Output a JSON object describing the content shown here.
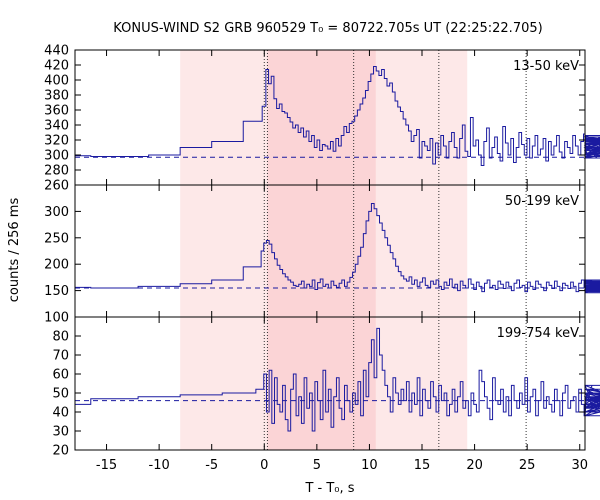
{
  "chart_data": {
    "type": "line",
    "title": "KONUS-WIND S2 GRB 960529 T₀ = 80722.705s UT (22:25:22.705)",
    "xlabel": "T - T₀, s",
    "ylabel": "counts / 256 ms",
    "xlim": [
      -18,
      30.5
    ],
    "xticks": [
      -15,
      -10,
      -5,
      0,
      5,
      10,
      15,
      20,
      25,
      30
    ],
    "xtick_labels": [
      "-15",
      "-10",
      "-5",
      "0",
      "5",
      "10",
      "15",
      "20",
      "25",
      "30"
    ],
    "shaded_intervals": [
      {
        "from": -8.0,
        "to": 19.3,
        "color": "#fde8e8"
      },
      {
        "from": 0.3,
        "to": 10.6,
        "color": "#fbd4d6"
      }
    ],
    "vlines_dotted": [
      0.0,
      0.3,
      8.5,
      16.6,
      24.9
    ],
    "line_color": "#1a1aa0",
    "panels": [
      {
        "label": "13-50 keV",
        "ylim": [
          260,
          440
        ],
        "yticks": [
          260,
          280,
          300,
          320,
          340,
          360,
          380,
          400,
          420,
          440
        ],
        "ytick_labels": [
          "260",
          "280",
          "300",
          "320",
          "340",
          "360",
          "380",
          "400",
          "420",
          "440"
        ],
        "background_level": 297,
        "steps": [
          {
            "x0": -18,
            "x1": -16.5,
            "y": 299
          },
          {
            "x0": -16.5,
            "x1": -11,
            "y": 298
          },
          {
            "x0": -11,
            "x1": -8,
            "y": 300
          },
          {
            "x0": -8,
            "x1": -5,
            "y": 310
          },
          {
            "x0": -5,
            "x1": -2,
            "y": 318
          },
          {
            "x0": -2,
            "x1": -0.2,
            "y": 345
          },
          {
            "x0": -0.2,
            "x1": 0.15,
            "y": 365
          }
        ],
        "x_start": 0.15,
        "dt": 0.256,
        "values": [
          414,
          395,
          405,
          375,
          362,
          368,
          358,
          356,
          350,
          344,
          336,
          340,
          330,
          336,
          324,
          332,
          318,
          326,
          310,
          320,
          306,
          314,
          312,
          308,
          318,
          305,
          322,
          312,
          326,
          338,
          330,
          342,
          345,
          352,
          360,
          368,
          376,
          386,
          398,
          408,
          418,
          412,
          406,
          414,
          402,
          392,
          396,
          384,
          372,
          364,
          358,
          348,
          340,
          332,
          318,
          326,
          334,
          296,
          318,
          312,
          306,
          322,
          288,
          316,
          300,
          326,
          312,
          296,
          318,
          330,
          310,
          296,
          322,
          340,
          305,
          298,
          350,
          312,
          320,
          300,
          286,
          318,
          336,
          296,
          310,
          324,
          302,
          292,
          338,
          316,
          300,
          322,
          290,
          310,
          330,
          314,
          300,
          322,
          296,
          312,
          326,
          300,
          308,
          322,
          292,
          318,
          300,
          312,
          326,
          304,
          296,
          318,
          310,
          302,
          326,
          312,
          300,
          318,
          328,
          306,
          300,
          324,
          312,
          296,
          310,
          326,
          316,
          300,
          322,
          308,
          296,
          318,
          326,
          302,
          312,
          300,
          324,
          316,
          300,
          320,
          310,
          298,
          316,
          322,
          302,
          312,
          298,
          318,
          322,
          306,
          300,
          316,
          312,
          296,
          318,
          324,
          306,
          300,
          314,
          322,
          308,
          300,
          318,
          316
        ]
      },
      {
        "label": "50-199 keV",
        "ylim": [
          100,
          350
        ],
        "yticks": [
          100,
          150,
          200,
          250,
          300
        ],
        "ytick_labels": [
          "100",
          "150",
          "200",
          "250",
          "300"
        ],
        "background_level": 155,
        "steps": [
          {
            "x0": -18,
            "x1": -16.5,
            "y": 156
          },
          {
            "x0": -16.5,
            "x1": -12,
            "y": 155
          },
          {
            "x0": -12,
            "x1": -8,
            "y": 158
          },
          {
            "x0": -8,
            "x1": -5,
            "y": 163
          },
          {
            "x0": -5,
            "x1": -2,
            "y": 170
          },
          {
            "x0": -2,
            "x1": -0.3,
            "y": 195
          },
          {
            "x0": -0.3,
            "x1": -0.05,
            "y": 225
          }
        ],
        "x_start": -0.05,
        "dt": 0.256,
        "values": [
          240,
          245,
          238,
          222,
          210,
          198,
          190,
          182,
          176,
          170,
          166,
          160,
          158,
          162,
          168,
          155,
          162,
          158,
          170,
          152,
          165,
          172,
          158,
          162,
          155,
          168,
          160,
          156,
          164,
          170,
          158,
          166,
          175,
          185,
          200,
          215,
          232,
          258,
          282,
          300,
          315,
          305,
          292,
          278,
          264,
          250,
          236,
          222,
          210,
          196,
          186,
          178,
          172,
          168,
          176,
          162,
          170,
          158,
          166,
          174,
          160,
          156,
          168,
          162,
          170,
          158,
          152,
          166,
          160,
          172,
          156,
          162,
          150,
          168,
          160,
          155,
          172,
          162,
          152,
          166,
          158,
          148,
          164,
          170,
          156,
          160,
          152,
          168,
          162,
          154,
          166,
          158,
          150,
          164,
          170,
          156,
          160,
          148,
          166,
          158,
          152,
          168,
          162,
          156,
          150,
          166,
          160,
          154,
          168,
          158,
          150,
          164,
          160,
          154,
          166,
          158,
          148,
          164,
          170,
          156,
          152,
          166,
          160,
          150,
          162,
          168,
          154,
          158,
          146,
          164,
          160,
          152,
          166,
          158,
          150,
          162,
          168,
          154,
          160,
          148,
          164,
          156,
          170,
          152,
          160,
          166,
          150,
          158,
          164,
          154,
          168,
          148,
          160,
          156,
          166,
          150,
          162,
          158,
          168,
          150,
          160,
          154,
          164,
          156,
          148,
          162
        ]
      },
      {
        "label": "199-754 keV",
        "ylim": [
          20,
          90
        ],
        "yticks": [
          20,
          30,
          40,
          50,
          60,
          70,
          80
        ],
        "ytick_labels": [
          "20",
          "30",
          "40",
          "50",
          "60",
          "70",
          "80"
        ],
        "background_level": 46,
        "steps": [
          {
            "x0": -18,
            "x1": -16.5,
            "y": 44
          },
          {
            "x0": -16.5,
            "x1": -12,
            "y": 47
          },
          {
            "x0": -12,
            "x1": -8,
            "y": 48
          },
          {
            "x0": -8,
            "x1": -4,
            "y": 49
          },
          {
            "x0": -4,
            "x1": -0.8,
            "y": 50
          },
          {
            "x0": -0.8,
            "x1": -0.05,
            "y": 52
          }
        ],
        "x_start": -0.05,
        "dt": 0.256,
        "values": [
          60,
          40,
          62,
          34,
          58,
          44,
          40,
          54,
          36,
          30,
          52,
          60,
          38,
          48,
          34,
          58,
          42,
          50,
          30,
          56,
          46,
          36,
          62,
          40,
          52,
          32,
          48,
          58,
          42,
          36,
          54,
          46,
          40,
          50,
          44,
          56,
          38,
          62,
          48,
          66,
          78,
          58,
          84,
          70,
          62,
          54,
          48,
          40,
          58,
          50,
          44,
          52,
          46,
          56,
          40,
          50,
          44,
          58,
          38,
          52,
          46,
          42,
          56,
          48,
          40,
          54,
          46,
          50,
          38,
          44,
          52,
          40,
          48,
          56,
          42,
          46,
          38,
          50,
          44,
          40,
          62,
          56,
          48,
          42,
          36,
          58,
          46,
          44,
          52,
          40,
          48,
          38,
          54,
          46,
          42,
          50,
          44,
          58,
          40,
          48,
          52,
          38,
          46,
          56,
          42,
          48,
          44,
          40,
          52,
          46,
          38,
          50,
          54,
          42,
          46,
          48,
          40,
          52,
          44,
          38,
          50,
          46,
          54,
          42,
          48,
          40,
          44,
          52,
          46,
          50,
          38,
          48,
          42,
          54,
          46,
          44,
          40,
          50,
          48,
          42,
          52,
          38,
          46,
          44,
          50,
          40,
          48,
          46,
          42,
          52,
          44,
          40,
          50,
          46,
          48,
          38,
          52,
          44,
          46,
          50,
          42,
          48,
          40,
          46,
          52,
          44,
          48,
          42,
          50,
          46,
          44
        ]
      }
    ]
  }
}
